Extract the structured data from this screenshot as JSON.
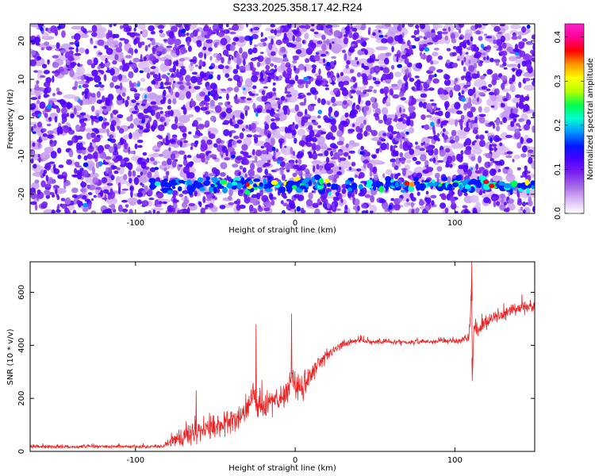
{
  "title": "S233.2025.358.17.42.R24",
  "chart_data": [
    {
      "type": "heatmap",
      "panel": "spectrogram",
      "xlabel": "Height of straight line (km)",
      "ylabel": "Frequency (Hz)",
      "xlim": [
        -166,
        150
      ],
      "ylim": [
        -25,
        24.5
      ],
      "x_ticks": [
        -100,
        0,
        100
      ],
      "y_ticks": [
        -20,
        -10,
        0,
        10,
        20
      ],
      "colorbar": {
        "label": "Normalized spectral amplitude",
        "range": [
          0.0,
          0.43
        ],
        "ticks": [
          0.0,
          0.1,
          0.2,
          0.3,
          0.4
        ],
        "colormap": [
          "#ffffff",
          "#d9b8f5",
          "#a46ae8",
          "#7a22f0",
          "#4b00ff",
          "#0018ff",
          "#0096ff",
          "#00ffd2",
          "#00ff50",
          "#b4ff00",
          "#ffff00",
          "#ff9600",
          "#ff0000",
          "#ff0096",
          "#ff22cc"
        ]
      },
      "features": [
        {
          "name": "background noise",
          "y_range": [
            -25,
            24.5
          ],
          "amplitude": 0.05
        },
        {
          "name": "signal band",
          "x_range": [
            -90,
            150
          ],
          "y_center": -17.5,
          "amplitude_peak": 0.33
        }
      ]
    },
    {
      "type": "line",
      "panel": "snr",
      "xlabel": "Height of straight line (km)",
      "ylabel": "SNR (10 * v/v)",
      "xlim": [
        -166,
        150
      ],
      "ylim": [
        0,
        715
      ],
      "x_ticks": [
        -100,
        0,
        100
      ],
      "y_ticks": [
        0,
        200,
        400,
        600
      ],
      "series": [
        {
          "color": "#ee2222",
          "x": [
            -166,
            -140,
            -110,
            -90,
            -82,
            -75,
            -65,
            -55,
            -45,
            -35,
            -28,
            -26,
            -24,
            -18,
            -10,
            -5,
            -2,
            0,
            5,
            10,
            15,
            20,
            25,
            30,
            40,
            50,
            60,
            70,
            80,
            90,
            100,
            105,
            109,
            110.5,
            111,
            112,
            115,
            120,
            130,
            140,
            150
          ],
          "y": [
            18,
            18,
            19,
            18,
            20,
            45,
            70,
            85,
            100,
            130,
            165,
            230,
            150,
            170,
            200,
            220,
            300,
            240,
            250,
            290,
            330,
            360,
            385,
            405,
            418,
            412,
            414,
            412,
            414,
            416,
            418,
            420,
            430,
            640,
            280,
            480,
            460,
            490,
            520,
            540,
            550
          ],
          "noise": [
            6,
            6,
            6,
            6,
            8,
            30,
            40,
            40,
            45,
            45,
            55,
            40,
            45,
            50,
            50,
            55,
            60,
            55,
            50,
            40,
            30,
            22,
            18,
            14,
            10,
            10,
            10,
            10,
            10,
            10,
            12,
            14,
            18,
            20,
            20,
            30,
            30,
            28,
            24,
            22,
            20
          ],
          "spikes": [
            {
              "x": -24.5,
              "y": 480
            },
            {
              "x": -2.3,
              "y": 520
            },
            {
              "x": 110.6,
              "y": 715
            },
            {
              "x": 110.9,
              "y": 265
            },
            {
              "x": -62,
              "y": 230
            }
          ]
        }
      ]
    }
  ]
}
